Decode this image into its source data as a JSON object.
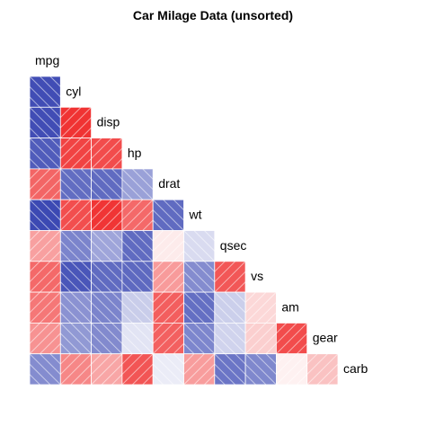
{
  "chart_data": {
    "type": "heatmap",
    "title": "Car Milage Data (unsorted)",
    "variables": [
      "mpg",
      "cyl",
      "disp",
      "hp",
      "drat",
      "wt",
      "qsec",
      "vs",
      "am",
      "gear",
      "carb"
    ],
    "layout": "lower-triangle correlogram with variable names on diagonal",
    "color_scale": {
      "negative": "#1f2ea8",
      "zero": "#ffffff",
      "positive": "#ee1c1c"
    },
    "hatch": "diagonal white lines, direction indicates sign of correlation",
    "correlations": [
      {
        "row": "cyl",
        "cols": {
          "mpg": -0.85
        }
      },
      {
        "row": "disp",
        "cols": {
          "mpg": -0.85,
          "cyl": 0.9
        }
      },
      {
        "row": "hp",
        "cols": {
          "mpg": -0.78,
          "cyl": 0.83,
          "disp": 0.79
        }
      },
      {
        "row": "drat",
        "cols": {
          "mpg": 0.68,
          "cyl": -0.7,
          "disp": -0.71,
          "hp": -0.45
        }
      },
      {
        "row": "wt",
        "cols": {
          "mpg": -0.87,
          "cyl": 0.78,
          "disp": 0.89,
          "hp": 0.66,
          "drat": -0.71
        }
      },
      {
        "row": "qsec",
        "cols": {
          "mpg": 0.42,
          "cyl": -0.59,
          "disp": -0.43,
          "hp": -0.71,
          "drat": 0.09,
          "wt": -0.17
        }
      },
      {
        "row": "vs",
        "cols": {
          "mpg": 0.66,
          "cyl": -0.81,
          "disp": -0.71,
          "hp": -0.72,
          "drat": 0.44,
          "wt": -0.55,
          "qsec": 0.74
        }
      },
      {
        "row": "am",
        "cols": {
          "mpg": 0.6,
          "cyl": -0.52,
          "disp": -0.59,
          "hp": -0.24,
          "drat": 0.71,
          "wt": -0.69,
          "qsec": -0.23,
          "vs": 0.17
        }
      },
      {
        "row": "gear",
        "cols": {
          "mpg": 0.48,
          "cyl": -0.49,
          "disp": -0.56,
          "hp": -0.13,
          "drat": 0.7,
          "wt": -0.58,
          "qsec": -0.21,
          "vs": 0.21,
          "am": 0.79
        }
      },
      {
        "row": "carb",
        "cols": {
          "mpg": -0.55,
          "cyl": 0.53,
          "disp": 0.39,
          "hp": 0.75,
          "drat": -0.09,
          "wt": 0.43,
          "qsec": -0.66,
          "vs": -0.57,
          "am": 0.06,
          "gear": 0.27
        }
      }
    ]
  }
}
